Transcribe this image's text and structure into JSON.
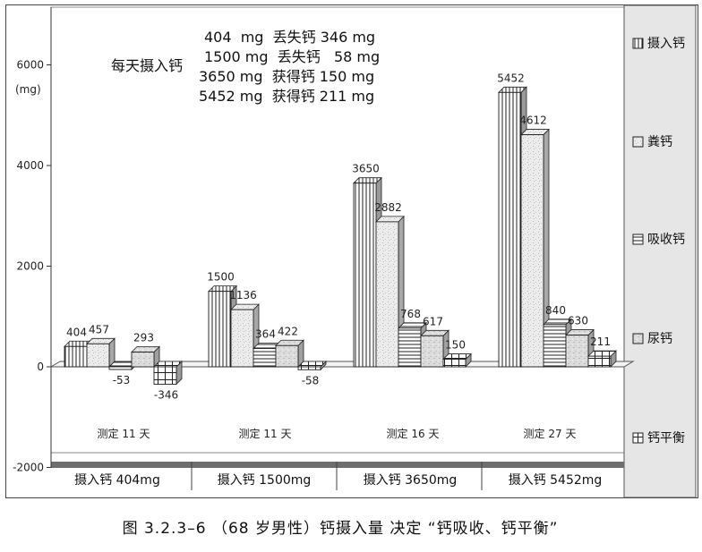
{
  "caption": "图 3.2.3–6 （68 岁男性）钙摄入量 决定 “钙吸收、钙平衡”",
  "chart_data": {
    "type": "bar",
    "ylabel": "(mg)",
    "ylim": [
      -2000,
      7000
    ],
    "yticks": [
      -2000,
      0,
      2000,
      4000,
      6000
    ],
    "categories": [
      "摄入钙  404mg",
      "摄入钙  1500mg",
      "摄入钙  3650mg",
      "摄入钙  5452mg"
    ],
    "group_labels": [
      "测定 11 天",
      "测定 11 天",
      "测定 16 天",
      "测定 27 天"
    ],
    "series": [
      {
        "name": "摄入钙",
        "values": [
          404,
          1500,
          3650,
          5452
        ],
        "labels": [
          "404",
          "1500",
          "3650",
          "5452"
        ]
      },
      {
        "name": "粪钙",
        "values": [
          457,
          1136,
          2882,
          4612
        ],
        "labels": [
          "457",
          "1136",
          "2882",
          "4612"
        ]
      },
      {
        "name": "吸收钙",
        "values": [
          -53,
          364,
          768,
          840
        ],
        "labels": [
          "-53",
          "364",
          "768",
          "840"
        ]
      },
      {
        "name": "尿钙",
        "values": [
          293,
          422,
          617,
          630
        ],
        "labels": [
          "293",
          "422",
          "617",
          "630"
        ]
      },
      {
        "name": "钙平衡",
        "values": [
          -346,
          -58,
          150,
          211
        ],
        "labels": [
          "-346",
          "-58",
          "150",
          "211"
        ]
      }
    ],
    "annotation": {
      "label": "每天摄入钙",
      "lines": [
        "404  mg  丢失钙 346 mg",
        "1500 mg  丢失钙   58 mg",
        "3650 mg  获得钙 150 mg",
        "5452 mg  获得钙 211 mg"
      ]
    },
    "legend_position": "right",
    "grid": false
  }
}
